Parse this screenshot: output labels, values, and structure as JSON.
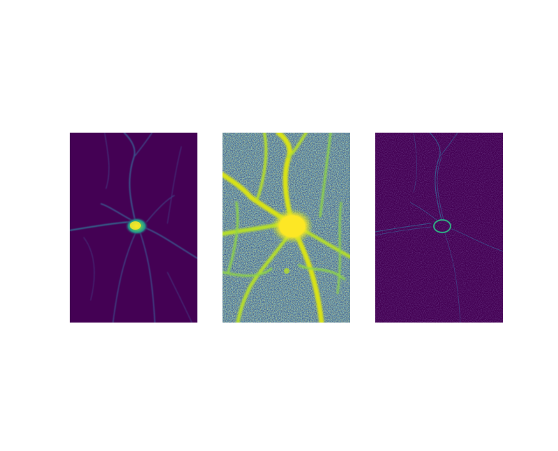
{
  "figure": {
    "panels": [
      {
        "id": "raw-fluorescence",
        "colormap": "viridis",
        "background": "#440154"
      },
      {
        "id": "contrast-enhanced",
        "colormap": "viridis",
        "background": "#2c6f8e"
      },
      {
        "id": "edge-filtered",
        "colormap": "viridis",
        "background": "#440154"
      }
    ],
    "colors": {
      "low": "#440154",
      "mid_low": "#3b528b",
      "mid": "#21918c",
      "mid_high": "#5ec962",
      "high": "#fde725"
    }
  }
}
